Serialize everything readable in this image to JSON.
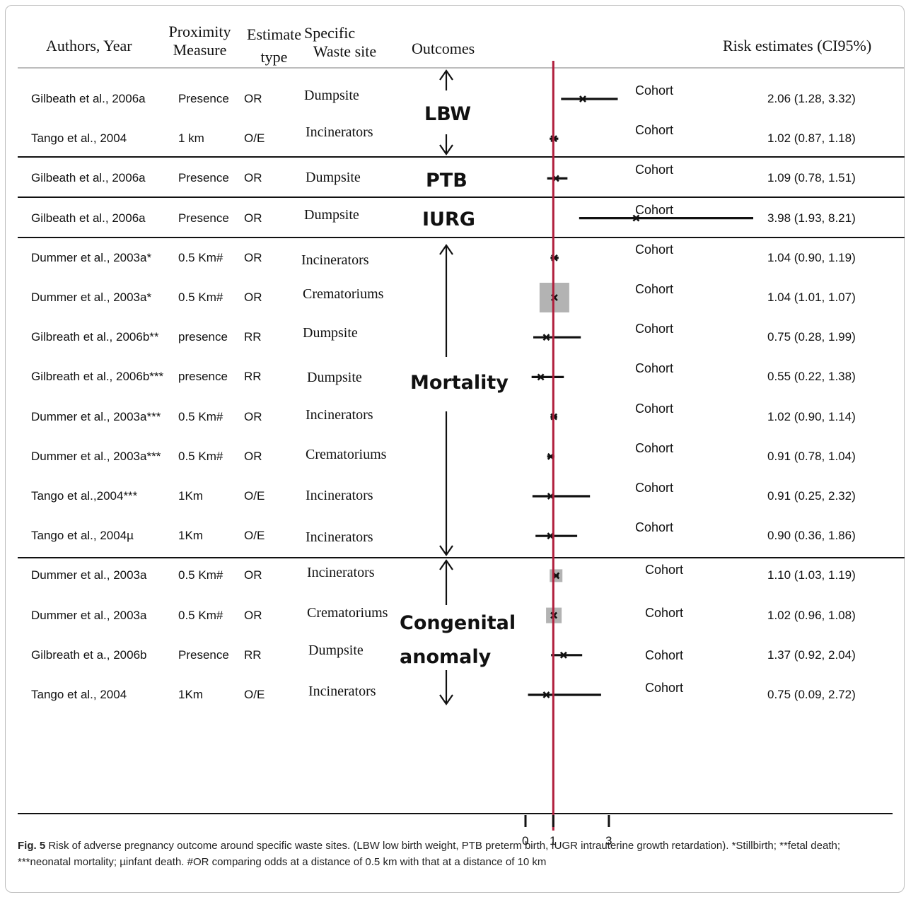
{
  "header": {
    "authors": "Authors, Year",
    "proximity": [
      "Proximity",
      "Measure"
    ],
    "estimate_type": [
      "Estimate",
      "type"
    ],
    "specific_site": [
      "Specific",
      "Waste site"
    ],
    "outcomes": "Outcomes",
    "risk": "Risk estimates  (CI95%)"
  },
  "groups": [
    "LBW",
    "PTB",
    "IURG",
    "Mortality",
    "Congenital",
    "anomaly"
  ],
  "axis_ticks": [
    "0",
    "1",
    "3"
  ],
  "rows": [
    {
      "author": "Gilbeath et al., 2006a",
      "measure": "Presence",
      "type": "OR",
      "site": "Dumpsite",
      "design": "Cohort",
      "est_text": "2.06 (1.28, 3.32)"
    },
    {
      "author": "Tango et al., 2004",
      "measure": "1 km",
      "type": "O/E",
      "site": "Incinerators",
      "design": "Cohort",
      "est_text": "1.02 (0.87, 1.18)"
    },
    {
      "author": "Gilbeath et al., 2006a",
      "measure": "Presence",
      "type": "OR",
      "site": "Dumpsite",
      "design": "Cohort",
      "est_text": "1.09 (0.78, 1.51)"
    },
    {
      "author": "Gilbeath et al., 2006a",
      "measure": "Presence",
      "type": "OR",
      "site": "Dumpsite",
      "design": "Cohort",
      "est_text": "3.98 (1.93, 8.21)"
    },
    {
      "author": "Dummer et al., 2003a*",
      "measure": "0.5 Km#",
      "type": "OR",
      "site": "Incinerators",
      "design": "Cohort",
      "est_text": "1.04 (0.90, 1.19)"
    },
    {
      "author": "Dummer et al., 2003a*",
      "measure": "0.5 Km#",
      "type": "OR",
      "site": "Crematoriums",
      "design": "Cohort",
      "est_text": "1.04 (1.01, 1.07)"
    },
    {
      "author": "Gilbreath et al., 2006b**",
      "measure": "presence",
      "type": "RR",
      "site": "Dumpsite",
      "design": "Cohort",
      "est_text": "0.75 (0.28, 1.99)"
    },
    {
      "author": "Gilbreath et al., 2006b***",
      "measure": "presence",
      "type": "RR",
      "site": "Dumpsite",
      "design": "Cohort",
      "est_text": "0.55 (0.22, 1.38)"
    },
    {
      "author": "Dummer et al., 2003a***",
      "measure": "0.5 Km#",
      "type": "OR",
      "site": "Incinerators",
      "design": "Cohort",
      "est_text": "1.02 (0.90, 1.14)"
    },
    {
      "author": "Dummer et al., 2003a***",
      "measure": "0.5 Km#",
      "type": "OR",
      "site": "Crematoriums",
      "design": "Cohort",
      "est_text": "0.91 (0.78, 1.04)"
    },
    {
      "author": "Tango et al.,2004***",
      "measure": "1Km",
      "type": "O/E",
      "site": "Incinerators",
      "design": "Cohort",
      "est_text": "0.91 (0.25, 2.32)"
    },
    {
      "author": "Tango et al., 2004µ",
      "measure": "1Km",
      "type": "O/E",
      "site": "Incinerators",
      "design": "Cohort",
      "est_text": "0.90 (0.36, 1.86)"
    },
    {
      "author": "Dummer et al., 2003a",
      "measure": "0.5 Km#",
      "type": "OR",
      "site": "Incinerators",
      "design": "Cohort",
      "est_text": "1.10 (1.03, 1.19)"
    },
    {
      "author": "Dummer et al., 2003a",
      "measure": "0.5 Km#",
      "type": "OR",
      "site": "Crematoriums",
      "design": "Cohort",
      "est_text": "1.02 (0.96, 1.08)"
    },
    {
      "author": "Gilbreath et a., 2006b",
      "measure": "Presence",
      "type": "RR",
      "site": "Dumpsite",
      "design": "Cohort",
      "est_text": "1.37 (0.92, 2.04)"
    },
    {
      "author": "Tango et al., 2004",
      "measure": "1Km",
      "type": "O/E",
      "site": "Incinerators",
      "design": "Cohort",
      "est_text": "0.75 (0.09, 2.72)"
    }
  ],
  "chart_data": {
    "type": "forest",
    "reference_line": 1,
    "reference_color": "#b01e3c",
    "x_ticks": [
      0,
      1,
      3
    ],
    "groups": [
      {
        "name": "LBW",
        "rows": [
          0,
          1
        ]
      },
      {
        "name": "PTB",
        "rows": [
          2
        ]
      },
      {
        "name": "IURG",
        "rows": [
          3
        ]
      },
      {
        "name": "Mortality",
        "rows": [
          4,
          5,
          6,
          7,
          8,
          9,
          10,
          11
        ]
      },
      {
        "name": "Congenital anomaly",
        "rows": [
          12,
          13,
          14,
          15
        ]
      }
    ],
    "estimates": [
      {
        "point": 2.06,
        "lower": 1.28,
        "upper": 3.32
      },
      {
        "point": 1.02,
        "lower": 0.87,
        "upper": 1.18
      },
      {
        "point": 1.09,
        "lower": 0.78,
        "upper": 1.51
      },
      {
        "point": 3.98,
        "lower": 1.93,
        "upper": 8.21
      },
      {
        "point": 1.04,
        "lower": 0.9,
        "upper": 1.19
      },
      {
        "point": 1.04,
        "lower": 1.01,
        "upper": 1.07
      },
      {
        "point": 0.75,
        "lower": 0.28,
        "upper": 1.99
      },
      {
        "point": 0.55,
        "lower": 0.22,
        "upper": 1.38
      },
      {
        "point": 1.02,
        "lower": 0.9,
        "upper": 1.14
      },
      {
        "point": 0.91,
        "lower": 0.78,
        "upper": 1.04
      },
      {
        "point": 0.91,
        "lower": 0.25,
        "upper": 2.32
      },
      {
        "point": 0.9,
        "lower": 0.36,
        "upper": 1.86
      },
      {
        "point": 1.1,
        "lower": 1.03,
        "upper": 1.19
      },
      {
        "point": 1.02,
        "lower": 0.96,
        "upper": 1.08
      },
      {
        "point": 1.37,
        "lower": 0.92,
        "upper": 2.04
      },
      {
        "point": 0.75,
        "lower": 0.09,
        "upper": 2.72
      }
    ]
  },
  "caption": {
    "lead": "Fig. 5",
    "text": "  Risk of adverse pregnancy outcome around specific waste sites. (LBW low birth weight, PTB preterm birth, IUGR intrauterine growth retardation). *Stillbirth; **fetal death; ***neonatal mortality; µinfant death. #OR comparing odds at a distance of 0.5 km with that at a distance of 10 km"
  }
}
